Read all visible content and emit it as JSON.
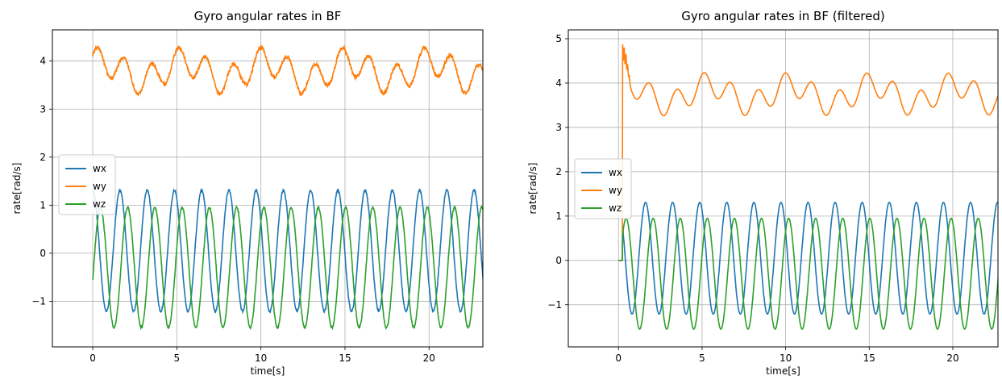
{
  "chart_data": [
    {
      "type": "line",
      "title": "Gyro angular rates in BF",
      "xlabel": "time[s]",
      "ylabel": "rate[rad/s]",
      "xlim": [
        -2.4,
        23.2
      ],
      "ylim": [
        -1.95,
        4.65
      ],
      "xticks": [
        0,
        5,
        10,
        15,
        20
      ],
      "yticks": [
        -1,
        0,
        1,
        2,
        3,
        4
      ],
      "grid": true,
      "legend": "center-left",
      "series": [
        {
          "name": "wx",
          "color": "#1f77b4",
          "t0": 0,
          "offset": 0.05,
          "amp": 1.26,
          "period": 1.62,
          "phase": 1.57,
          "amp2": 0,
          "period2": 4.9,
          "noise": 0.02
        },
        {
          "name": "wy",
          "color": "#ff7f0e",
          "t0": 0,
          "offset": 3.8,
          "amp": 0.3,
          "period": 1.62,
          "phase": 0.6,
          "amp2": 0.2,
          "period2": 4.9,
          "noise": 0.04
        },
        {
          "name": "wz",
          "color": "#2ca02c",
          "t0": 0,
          "offset": -0.3,
          "amp": 1.25,
          "period": 1.62,
          "phase": -0.2,
          "amp2": 0,
          "period2": 4.9,
          "noise": 0.02
        }
      ]
    },
    {
      "type": "line",
      "title": "Gyro angular rates in BF (filtered)",
      "xlabel": "time[s]",
      "ylabel": "rate[rad/s]",
      "xlim": [
        -3.0,
        22.7
      ],
      "ylim": [
        -1.95,
        5.2
      ],
      "xticks": [
        0,
        5,
        10,
        15,
        20
      ],
      "yticks": [
        -1,
        0,
        1,
        2,
        3,
        4,
        5
      ],
      "grid": true,
      "legend": "center-left",
      "series": [
        {
          "name": "wx",
          "color": "#1f77b4",
          "t0": 0.25,
          "offset": 0.05,
          "amp": 1.26,
          "period": 1.62,
          "phase": 1.57,
          "amp2": 0,
          "period2": 4.9,
          "noise": 0,
          "spike": 0
        },
        {
          "name": "wy",
          "color": "#ff7f0e",
          "t0": 0.25,
          "offset": 3.75,
          "amp": 0.28,
          "period": 1.62,
          "phase": 0.6,
          "amp2": 0.22,
          "period2": 4.9,
          "noise": 0,
          "spike": 4.95
        },
        {
          "name": "wz",
          "color": "#2ca02c",
          "t0": 0.25,
          "offset": -0.3,
          "amp": 1.25,
          "period": 1.62,
          "phase": -0.2,
          "amp2": 0,
          "period2": 4.9,
          "noise": 0,
          "spike": 0
        }
      ]
    }
  ]
}
